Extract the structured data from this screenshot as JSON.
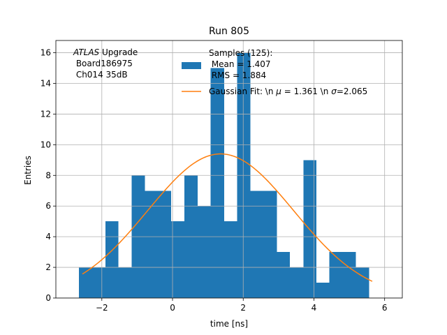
{
  "chart_data": {
    "type": "bar",
    "title": "Run 805",
    "xlabel": "time [ns]",
    "ylabel": "Entries",
    "xlim": [
      -3.3,
      6.5
    ],
    "ylim": [
      0,
      16.8
    ],
    "grid": true,
    "xticks": [
      -2,
      0,
      2,
      4,
      6
    ],
    "xtick_labels": [
      "−2",
      "0",
      "2",
      "4",
      "6"
    ],
    "yticks": [
      0,
      2,
      4,
      6,
      8,
      10,
      12,
      14,
      16
    ],
    "ytick_labels": [
      "0",
      "2",
      "4",
      "6",
      "8",
      "10",
      "12",
      "14",
      "16"
    ],
    "bin_edges": [
      -2.65,
      -2.28,
      -1.9,
      -1.53,
      -1.16,
      -0.78,
      -0.41,
      -0.04,
      0.34,
      0.71,
      1.08,
      1.46,
      1.83,
      2.2,
      2.58,
      2.95,
      3.32,
      3.7,
      4.07,
      4.44,
      4.82,
      5.19,
      5.56
    ],
    "series": [
      {
        "name": "Samples (125):\n Mean = 1.407\n RMS = 1.884",
        "kind": "histogram",
        "color": "#1f77b4",
        "values": [
          2,
          2,
          5,
          2,
          8,
          7,
          7,
          5,
          8,
          6,
          15,
          5,
          16,
          7,
          7,
          3,
          2,
          9,
          1,
          3,
          3,
          2
        ]
      },
      {
        "name": "Gaussian Fit: \\n $\\mu$ = 1.361 \\n $\\sigma$=2.065",
        "kind": "curve",
        "color": "#ff7f0e",
        "mu": 1.361,
        "sigma": 2.065,
        "amplitude": 9.4,
        "x_range": [
          -2.55,
          5.65
        ]
      }
    ],
    "legend_entries": {
      "samples_title": "Samples (125):",
      "samples_mean": " Mean = 1.407",
      "samples_rms": " RMS = 1.884",
      "fit_prefix": "Gaussian Fit: \\n ",
      "fit_mu": "μ",
      "fit_mid": " = 1.361 \\n ",
      "fit_sigma": "σ",
      "fit_suffix": "=2.065"
    },
    "legend_position": "upper center",
    "annotation": {
      "atlas": "ATLAS",
      "upgrade": " Upgrade",
      "line2": " Board186975",
      "line3": " Ch014 35dB"
    }
  }
}
